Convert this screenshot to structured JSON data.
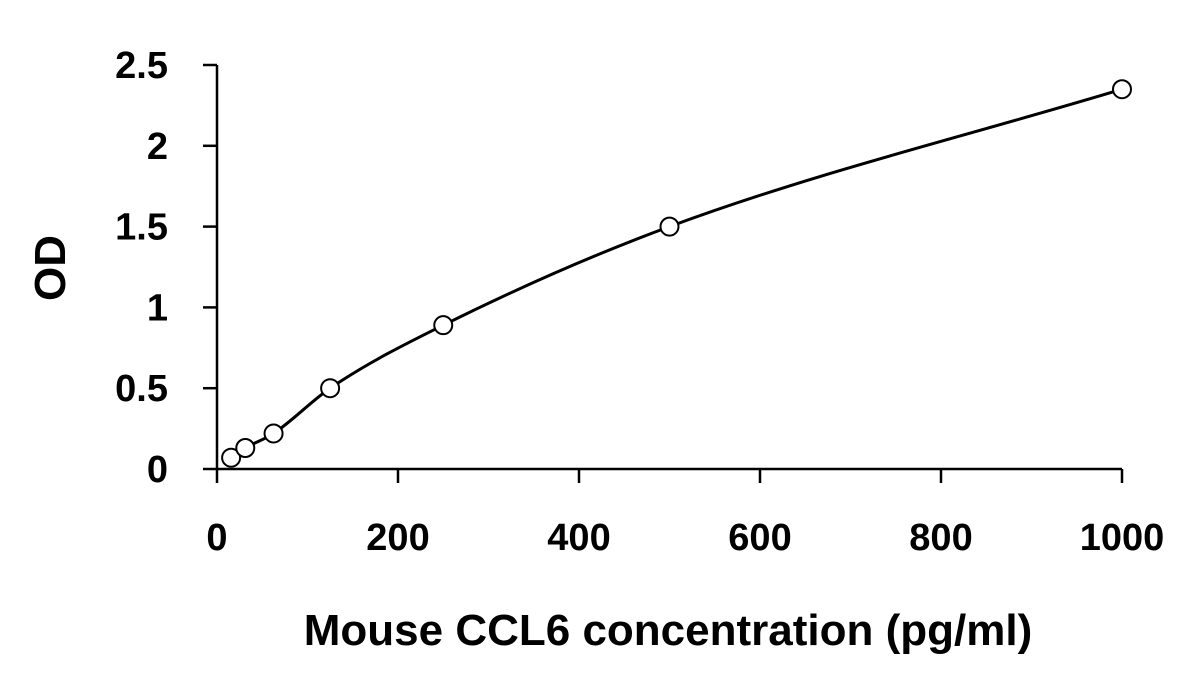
{
  "chart_data": {
    "type": "scatter",
    "title": "",
    "xlabel": "Mouse CCL6 concentration (pg/ml)",
    "ylabel": "OD",
    "xlim": [
      0,
      1000
    ],
    "ylim": [
      0,
      2.5
    ],
    "x_ticks": [
      "0",
      "200",
      "400",
      "600",
      "800",
      "1000"
    ],
    "y_ticks": [
      "0",
      "0.5",
      "1",
      "1.5",
      "2",
      "2.5"
    ],
    "grid": false,
    "series": [
      {
        "marker": "open-circle",
        "fit_line": true,
        "points": [
          {
            "x": 15.6,
            "y": 0.07
          },
          {
            "x": 31.25,
            "y": 0.13
          },
          {
            "x": 62.5,
            "y": 0.22
          },
          {
            "x": 125,
            "y": 0.5
          },
          {
            "x": 250,
            "y": 0.89
          },
          {
            "x": 500,
            "y": 1.5
          },
          {
            "x": 1000,
            "y": 2.35
          }
        ]
      }
    ]
  }
}
